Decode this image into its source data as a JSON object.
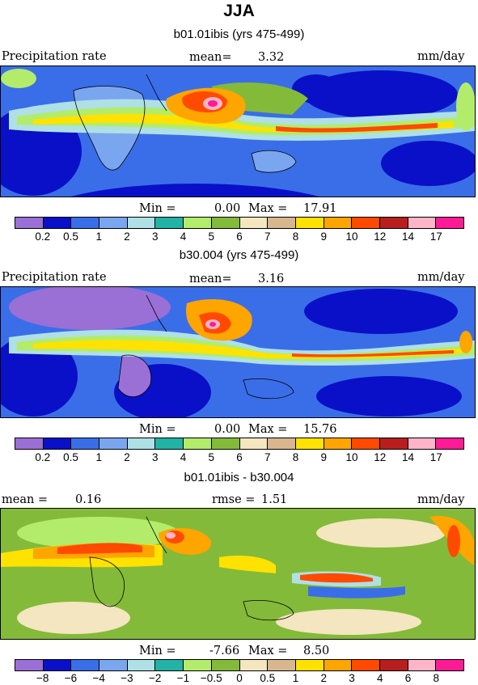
{
  "page_title": "JJA",
  "units": "mm/day",
  "panels": [
    {
      "title": "b01.01ibis (yrs 475-499)",
      "left_label": "Precipitation rate",
      "stat_label": "mean=",
      "stat_value": "3.32",
      "min_label": "Min =",
      "min_value": "0.00",
      "max_label": "Max =",
      "max_value": "17.91"
    },
    {
      "title": "b30.004 (yrs 475-499)",
      "left_label": "Precipitation rate",
      "stat_label": "mean=",
      "stat_value": "3.16",
      "min_label": "Min =",
      "min_value": "0.00",
      "max_label": "Max =",
      "max_value": "15.76"
    },
    {
      "title": "b01.01ibis - b30.004",
      "mean_label": "mean =",
      "mean_value": "0.16",
      "rmse_label": "rmse =",
      "rmse_value": "1.51",
      "min_label": "Min =",
      "min_value": "-7.66",
      "max_label": "Max =",
      "max_value": "8.50"
    }
  ],
  "precip_colorbar": {
    "colors": [
      "#9a6fd6",
      "#0a10c8",
      "#3a6ee8",
      "#7aa6f0",
      "#aee0e6",
      "#22b2a6",
      "#b2ec6a",
      "#84ba3a",
      "#f4e6c0",
      "#d8b68e",
      "#ffe200",
      "#ffa500",
      "#ff4a00",
      "#b81e1e",
      "#ffb4c8",
      "#ff1a96"
    ],
    "labels": [
      "0.2",
      "0.5",
      "1",
      "2",
      "3",
      "4",
      "5",
      "6",
      "7",
      "8",
      "9",
      "10",
      "12",
      "14",
      "17"
    ]
  },
  "diff_colorbar": {
    "colors": [
      "#9a6fd6",
      "#0a10c8",
      "#3a6ee8",
      "#7aa6f0",
      "#aee0e6",
      "#22b2a6",
      "#b2ec6a",
      "#84ba3a",
      "#f4e6c0",
      "#d8b68e",
      "#ffe200",
      "#ffa500",
      "#ff4a00",
      "#b81e1e",
      "#ffb4c8",
      "#ff1a96"
    ],
    "labels": [
      "−8",
      "−6",
      "−4",
      "−3",
      "−2",
      "−1",
      "−0.5",
      "0",
      "0.5",
      "1",
      "2",
      "3",
      "4",
      "6",
      "8"
    ]
  }
}
